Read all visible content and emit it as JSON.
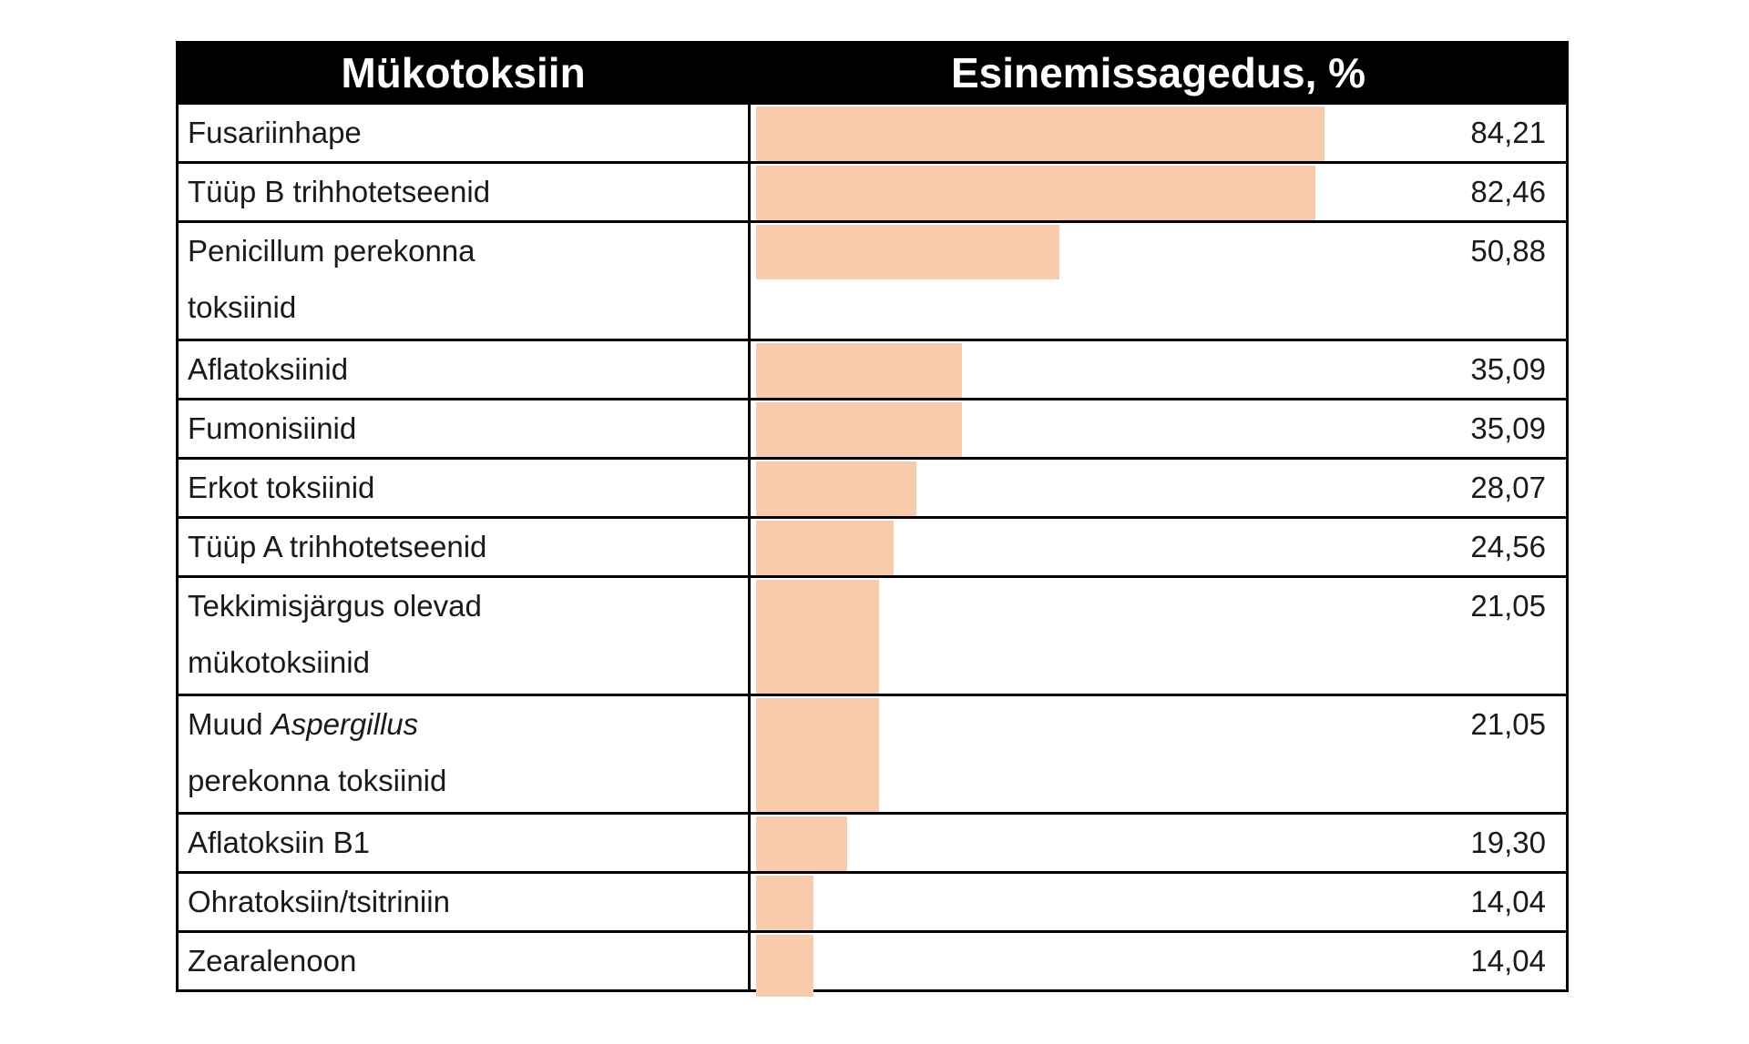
{
  "table": {
    "headers": {
      "col1": "Mükotoksiin",
      "col2": "Esinemissagedus, %"
    },
    "colors": {
      "bar": "#F8CBAD",
      "header_bg": "#000000",
      "header_fg": "#FFFFFF",
      "border": "#000000",
      "text": "#1A1A1A",
      "page_bg": "#FFFFFF"
    },
    "rows": [
      {
        "name_lines": [
          [
            {
              "t": "Fusariinhape",
              "i": false
            }
          ]
        ],
        "value_label": "84,21",
        "value": 84.21,
        "bar_pct": 69.7,
        "bar_rows": 1,
        "overhang": false
      },
      {
        "name_lines": [
          [
            {
              "t": "Tüüp B trihhotetseenid",
              "i": false
            }
          ]
        ],
        "value_label": "82,46",
        "value": 82.46,
        "bar_pct": 68.6,
        "bar_rows": 1,
        "overhang": false
      },
      {
        "name_lines": [
          [
            {
              "t": "Penicillum perekonna",
              "i": false
            }
          ],
          [
            {
              "t": "toksiinid",
              "i": false
            }
          ]
        ],
        "value_label": "50,88",
        "value": 50.88,
        "bar_pct": 37.2,
        "bar_rows": 1,
        "overhang": false
      },
      {
        "name_lines": [
          [
            {
              "t": "Aflatoksiinid",
              "i": false
            }
          ]
        ],
        "value_label": "35,09",
        "value": 35.09,
        "bar_pct": 25.3,
        "bar_rows": 1,
        "overhang": false
      },
      {
        "name_lines": [
          [
            {
              "t": "Fumonisiinid",
              "i": false
            }
          ]
        ],
        "value_label": "35,09",
        "value": 35.09,
        "bar_pct": 25.3,
        "bar_rows": 1,
        "overhang": false
      },
      {
        "name_lines": [
          [
            {
              "t": "Erkot toksiinid",
              "i": false
            }
          ]
        ],
        "value_label": "28,07",
        "value": 28.07,
        "bar_pct": 19.7,
        "bar_rows": 1,
        "overhang": false
      },
      {
        "name_lines": [
          [
            {
              "t": "Tüüp A trihhotetseenid",
              "i": false
            }
          ]
        ],
        "value_label": "24,56",
        "value": 24.56,
        "bar_pct": 16.9,
        "bar_rows": 1,
        "overhang": false
      },
      {
        "name_lines": [
          [
            {
              "t": "Tekkimisjärgus olevad",
              "i": false
            }
          ],
          [
            {
              "t": "mükotoksiinid",
              "i": false
            }
          ]
        ],
        "value_label": "21,05",
        "value": 21.05,
        "bar_pct": 15.1,
        "bar_rows": 2,
        "overhang": false
      },
      {
        "name_lines": [
          [
            {
              "t": "Muud ",
              "i": false
            },
            {
              "t": "Aspergillus",
              "i": true
            }
          ],
          [
            {
              "t": "perekonna toksiinid",
              "i": false
            }
          ]
        ],
        "value_label": "21,05",
        "value": 21.05,
        "bar_pct": 15.1,
        "bar_rows": 2,
        "overhang": false
      },
      {
        "name_lines": [
          [
            {
              "t": "Aflatoksiin B1",
              "i": false
            }
          ]
        ],
        "value_label": "19,30",
        "value": 19.3,
        "bar_pct": 11.2,
        "bar_rows": 1,
        "overhang": false
      },
      {
        "name_lines": [
          [
            {
              "t": "Ohratoksiin/tsitriniin",
              "i": false
            }
          ]
        ],
        "value_label": "14,04",
        "value": 14.04,
        "bar_pct": 7.0,
        "bar_rows": 1,
        "overhang": false
      },
      {
        "name_lines": [
          [
            {
              "t": "Zearalenoon",
              "i": false
            }
          ]
        ],
        "value_label": "14,04",
        "value": 14.04,
        "bar_pct": 7.0,
        "bar_rows": 1,
        "overhang": true
      }
    ]
  },
  "chart_data": {
    "type": "bar",
    "orientation": "horizontal",
    "title": "",
    "xlabel": "Esinemissagedus, %",
    "ylabel": "Mükotoksiin",
    "legend": false,
    "grid": false,
    "xlim": [
      0,
      100
    ],
    "decimal_separator": ",",
    "bar_color": "#F8CBAD",
    "categories": [
      "Fusariinhape",
      "Tüüp B trihhotetseenid",
      "Penicillum perekonna toksiinid",
      "Aflatoksiinid",
      "Fumonisiinid",
      "Erkot toksiinid",
      "Tüüp A trihhotetseenid",
      "Tekkimisjärgus olevad mükotoksiinid",
      "Muud Aspergillus perekonna toksiinid",
      "Aflatoksiin B1",
      "Ohratoksiin/tsitriniin",
      "Zearalenoon"
    ],
    "values": [
      84.21,
      82.46,
      50.88,
      35.09,
      35.09,
      28.07,
      24.56,
      21.05,
      21.05,
      19.3,
      14.04,
      14.04
    ],
    "value_labels": [
      "84,21",
      "82,46",
      "50,88",
      "35,09",
      "35,09",
      "28,07",
      "24,56",
      "21,05",
      "21,05",
      "19,30",
      "14,04",
      "14,04"
    ]
  }
}
